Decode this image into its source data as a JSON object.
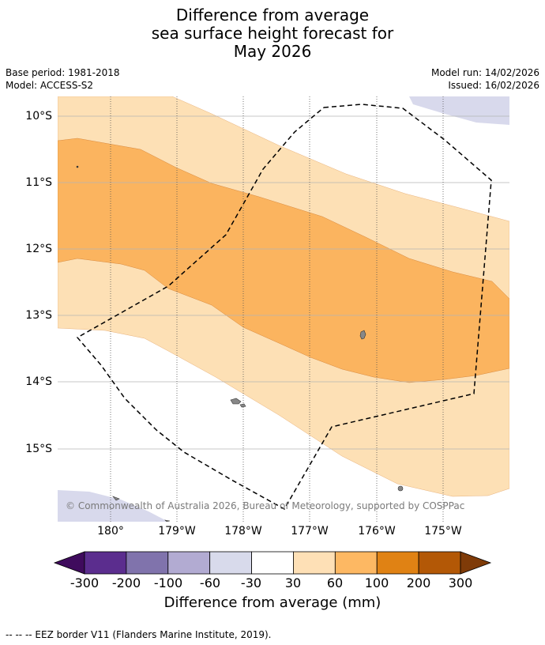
{
  "title": {
    "line1": "Difference from average",
    "line2": "sea surface height forecast for",
    "line3": "May 2026"
  },
  "meta": {
    "base_period": "Base period: 1981-2018",
    "model": "Model: ACCESS-S2",
    "model_run": "Model run: 14/02/2026",
    "issued": "Issued: 16/02/2026"
  },
  "map": {
    "lat_labels": [
      "10°S",
      "11°S",
      "12°S",
      "13°S",
      "14°S",
      "15°S"
    ],
    "lon_labels": [
      "180°",
      "179°W",
      "178°W",
      "177°W",
      "176°W",
      "175°W"
    ],
    "copyright": "© Commonwealth of Australia 2026, Bureau of Meteorology, supported by COSPPac",
    "colors": {
      "band_30_60": "#fde0b5",
      "band_60_100": "#fbb45f",
      "band_neg_30_neg_60": "#d8d9ec",
      "land": "#888888"
    }
  },
  "colorbar": {
    "ticks": [
      "-300",
      "-200",
      "-100",
      "-60",
      "-30",
      "30",
      "60",
      "100",
      "200",
      "300"
    ],
    "colors": [
      "#3f0b5d",
      "#5b2d8e",
      "#8073ac",
      "#b2abd2",
      "#d8daeb",
      "#ffffff",
      "#fee0b6",
      "#fdb863",
      "#e08214",
      "#b35806",
      "#7f3b08"
    ],
    "label": "Difference from average (mm)"
  },
  "footer": "--  --  -- EEZ border V11 (Flanders Marine Institute, 2019)."
}
